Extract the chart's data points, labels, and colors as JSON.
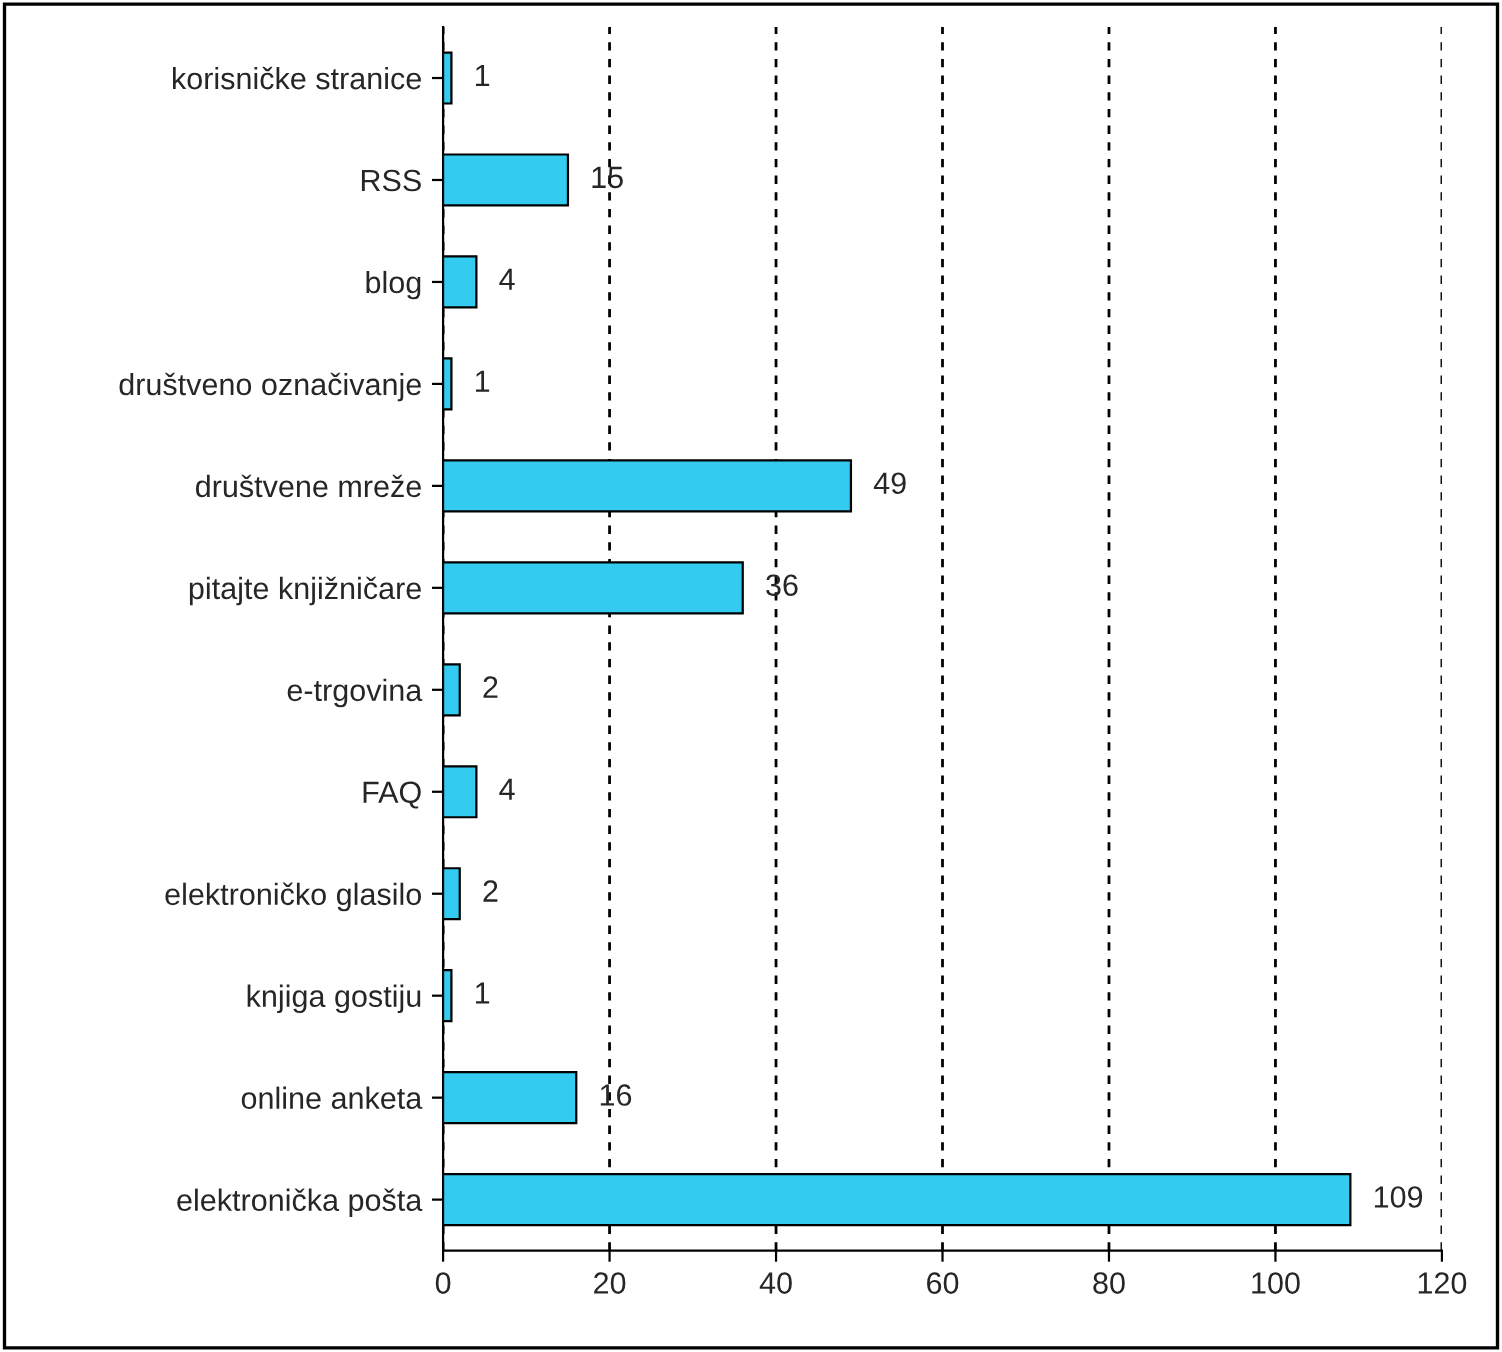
{
  "chart_data": {
    "type": "bar",
    "orientation": "horizontal",
    "categories": [
      "korisničke stranice",
      "RSS",
      "blog",
      "društveno označivanje",
      "društvene mreže",
      "pitajte knjižničare",
      "e-trgovina",
      "FAQ",
      "elektroničko glasilo",
      "knjiga gostiju",
      "online anketa",
      "elektronička pošta"
    ],
    "values": [
      1,
      15,
      4,
      1,
      49,
      36,
      2,
      4,
      2,
      1,
      16,
      109
    ],
    "color": "#33ccf0",
    "xlim": [
      0,
      120
    ],
    "xticks": [
      0,
      20,
      40,
      60,
      80,
      100,
      120
    ],
    "grid": "x",
    "data_labels": true
  }
}
